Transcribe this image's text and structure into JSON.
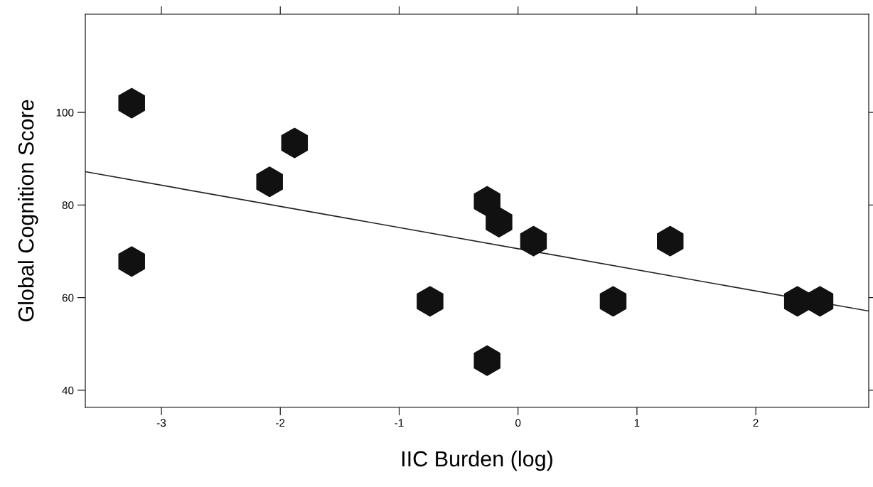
{
  "chart_data": {
    "type": "scatter",
    "xlabel": "IIC Burden (log)",
    "ylabel": "Global Cognition Score",
    "xlim": [
      -3.64,
      2.95
    ],
    "ylim": [
      36.3,
      121.2
    ],
    "xticks": [
      -3,
      -2,
      -1,
      0,
      1,
      2
    ],
    "yticks": [
      40,
      60,
      80,
      100
    ],
    "grid": false,
    "legend": false,
    "series": [
      {
        "color": "#111111",
        "x": [
          -3.25,
          -3.25,
          -1.88,
          -2.09,
          -0.74,
          -0.26,
          -0.16,
          -0.26,
          0.13,
          0.8,
          1.28,
          2.35,
          2.54
        ],
        "values": [
          102,
          67.8,
          93.4,
          85,
          59.2,
          80.8,
          76.3,
          46.4,
          72.2,
          59.2,
          72.2,
          59.2,
          59.2
        ]
      },
      {
        "type": "line",
        "color": "#222222",
        "x": [
          -3.64,
          2.95
        ],
        "values": [
          87.2,
          57.1
        ]
      }
    ]
  }
}
